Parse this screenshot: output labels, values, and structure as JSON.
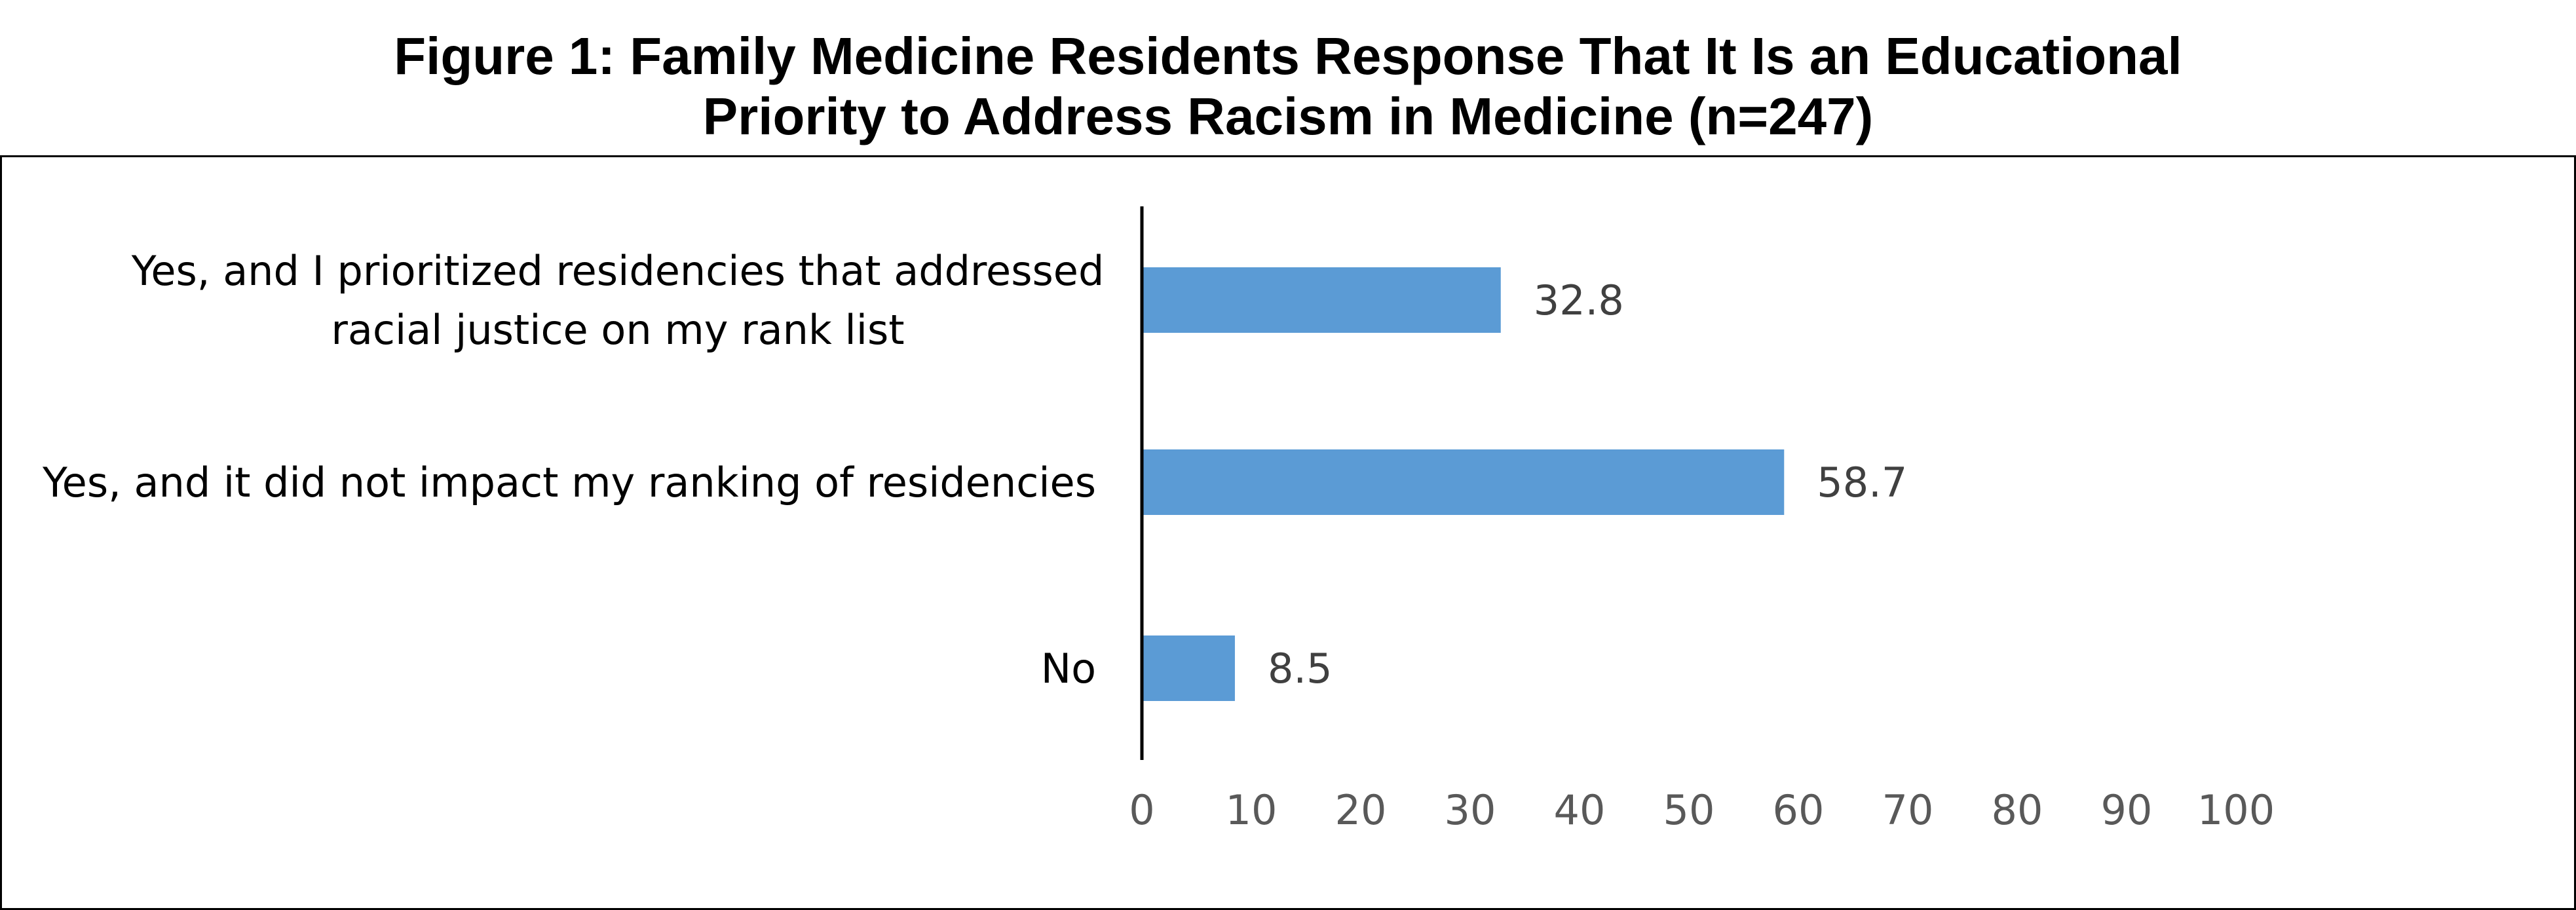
{
  "title": {
    "line1": "Figure 1: Family Medicine Residents Response That It Is an Educational",
    "line2": "Priority to Address Racism in Medicine (n=247)"
  },
  "chart_data": {
    "type": "bar",
    "orientation": "horizontal",
    "categories": [
      [
        "Yes, and I prioritized residencies that addressed",
        "racial justice on my rank list"
      ],
      [
        "Yes, and it did not impact my ranking of residencies"
      ],
      [
        "No"
      ]
    ],
    "values": [
      32.8,
      58.7,
      8.5
    ],
    "value_labels": [
      "32.8",
      "58.7",
      "8.5"
    ],
    "xlim": [
      0,
      100
    ],
    "xticks": [
      0,
      10,
      20,
      30,
      40,
      50,
      60,
      70,
      80,
      90,
      100
    ],
    "bar_color": "#5B9BD5",
    "grid": false,
    "legend": "none"
  }
}
